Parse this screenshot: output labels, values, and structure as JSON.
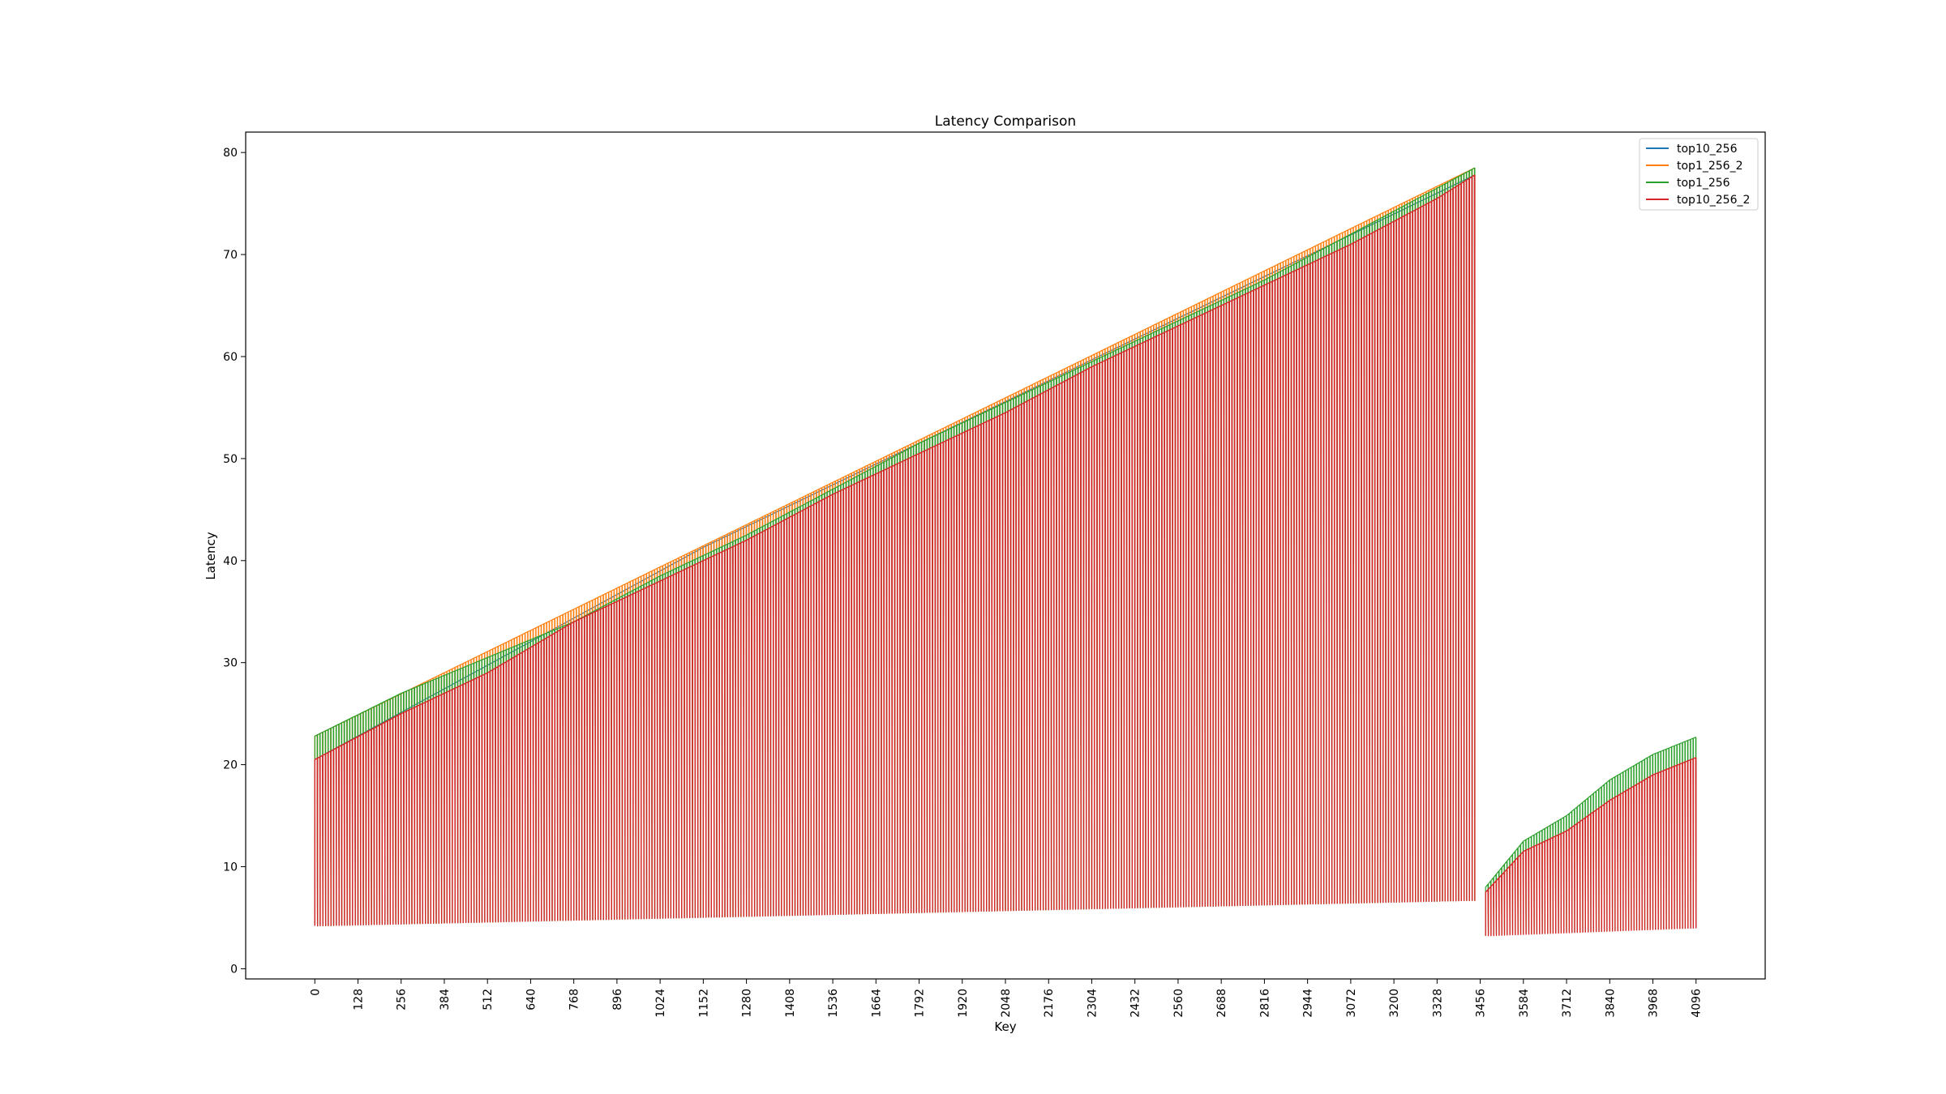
{
  "chart_data": {
    "type": "line",
    "title": "Latency Comparison",
    "xlabel": "Key",
    "ylabel": "Latency",
    "xlim": [
      -205,
      4301
    ],
    "ylim": [
      -1,
      82
    ],
    "xticks": [
      0,
      128,
      256,
      384,
      512,
      640,
      768,
      896,
      1024,
      1152,
      1280,
      1408,
      1536,
      1664,
      1792,
      1920,
      2048,
      2176,
      2304,
      2432,
      2560,
      2688,
      2816,
      2944,
      3072,
      3200,
      3328,
      3456,
      3584,
      3712,
      3840,
      3968,
      4096
    ],
    "yticks": [
      0,
      10,
      20,
      30,
      40,
      50,
      60,
      70,
      80
    ],
    "grid": false,
    "legend_position": "top-right",
    "pattern": "sawtooth: each block of 16 keys starts at a high latency and drops near the base latency",
    "series": [
      {
        "name": "top10_256",
        "color": "#1f77b4",
        "envelope_high": {
          "x": [
            0,
            1152,
            3440
          ],
          "y": [
            20.5,
            41.3,
            77.8
          ]
        },
        "envelope_low": {
          "x": [
            0,
            3440
          ],
          "y": [
            4.2,
            6.7
          ]
        }
      },
      {
        "name": "top1_256_2",
        "color": "#ff7f0e",
        "envelope_high": {
          "x": [
            0,
            3440
          ],
          "y": [
            22.8,
            78.5
          ]
        },
        "envelope_low": {
          "x": [
            0,
            3440
          ],
          "y": [
            4.2,
            6.7
          ]
        }
      },
      {
        "name": "top1_256",
        "color": "#2ca02c",
        "envelope_high": {
          "x": [
            0,
            256,
            512,
            768,
            1024,
            1280,
            1536,
            1792,
            2048,
            2304,
            2560,
            2816,
            3072,
            3328,
            3440,
            3472,
            3584,
            3712,
            3840,
            3968,
            4096
          ],
          "y": [
            22.8,
            27.0,
            30.5,
            34.0,
            38.5,
            42.5,
            47.0,
            51.5,
            55.5,
            59.5,
            63.5,
            67.5,
            72.0,
            76.5,
            78.5,
            8.0,
            12.5,
            15.0,
            18.5,
            21.0,
            22.7
          ]
        },
        "envelope_low": {
          "x": [
            0,
            3440,
            3456,
            4096
          ],
          "y": [
            4.2,
            6.7,
            3.3,
            4.0
          ]
        }
      },
      {
        "name": "top10_256_2",
        "color": "#d62728",
        "envelope_high": {
          "x": [
            0,
            256,
            512,
            768,
            1024,
            1280,
            1536,
            1792,
            2048,
            2304,
            2560,
            2816,
            3072,
            3328,
            3440,
            3472,
            3584,
            3712,
            3840,
            3968,
            4096
          ],
          "y": [
            20.5,
            25.0,
            29.0,
            34.0,
            38.0,
            42.0,
            46.5,
            50.5,
            54.5,
            59.0,
            63.0,
            67.0,
            71.0,
            75.5,
            77.8,
            7.5,
            11.5,
            13.5,
            16.5,
            19.0,
            20.7
          ]
        },
        "envelope_low": {
          "x": [
            0,
            3440,
            3456,
            4096
          ],
          "y": [
            4.2,
            6.7,
            3.2,
            4.0
          ]
        }
      }
    ]
  }
}
